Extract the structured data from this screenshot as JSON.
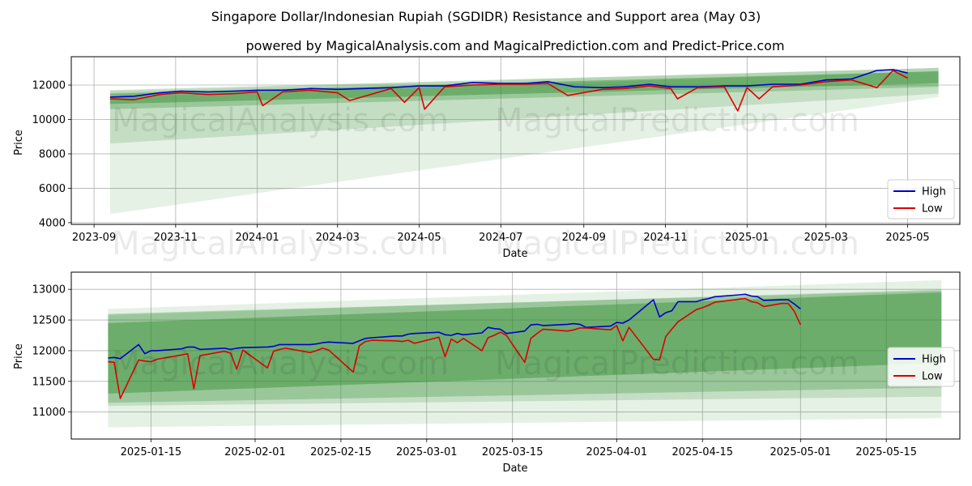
{
  "title": "Singapore Dollar/Indonesian Rupiah (SGDIDR) Resistance and Support area (May 03)",
  "subtitle": "powered by MagicalAnalysis.com and MagicalPrediction.com and Predict-Price.com",
  "watermarks": [
    "MagicalAnalysis.com",
    "MagicalPrediction.com"
  ],
  "colors": {
    "high": "#0000cc",
    "low": "#dd0000",
    "band": "#2e8b2e",
    "grid": "#b0b0b0"
  },
  "chart_data": [
    {
      "type": "line",
      "xlabel": "Date",
      "ylabel": "Price",
      "x_ticks": [
        "2023-09",
        "2023-11",
        "2024-01",
        "2024-03",
        "2024-05",
        "2024-07",
        "2024-09",
        "2024-11",
        "2025-01",
        "2025-03",
        "2025-05"
      ],
      "y_ticks": [
        "4000",
        "6000",
        "8000",
        "10000",
        "12000"
      ],
      "xlim": [
        "2023-08-15",
        "2025-06-09"
      ],
      "ylim": [
        3900,
        13650
      ],
      "grid": true,
      "legend": {
        "position": "lower-right",
        "entries": [
          "High",
          "Low"
        ]
      },
      "bands": [
        {
          "x": [
            "2023-09-13",
            "2025-05-24"
          ],
          "lower": [
            4500,
            11300
          ],
          "upper": [
            11600,
            13000
          ]
        },
        {
          "x": [
            "2023-09-13",
            "2025-05-24"
          ],
          "lower": [
            8600,
            11500
          ],
          "upper": [
            11300,
            12800
          ]
        },
        {
          "x": [
            "2023-09-13",
            "2025-05-24"
          ],
          "lower": [
            10600,
            11900
          ],
          "upper": [
            11700,
            13000
          ]
        },
        {
          "x": [
            "2023-09-13",
            "2025-05-24"
          ],
          "lower": [
            10900,
            12100
          ],
          "upper": [
            11500,
            12800
          ]
        }
      ],
      "series": [
        {
          "name": "High",
          "x": [
            "2023-09-13",
            "2023-10-01",
            "2023-10-20",
            "2023-11-05",
            "2023-11-25",
            "2023-12-15",
            "2024-01-01",
            "2024-01-20",
            "2024-02-10",
            "2024-03-01",
            "2024-03-20",
            "2024-04-10",
            "2024-05-01",
            "2024-05-20",
            "2024-06-10",
            "2024-07-01",
            "2024-07-20",
            "2024-08-05",
            "2024-08-25",
            "2024-09-15",
            "2024-10-01",
            "2024-10-20",
            "2024-11-05",
            "2024-11-25",
            "2024-12-15",
            "2025-01-01",
            "2025-01-20",
            "2025-02-10",
            "2025-03-01",
            "2025-03-20",
            "2025-04-08",
            "2025-04-20",
            "2025-05-01"
          ],
          "values": [
            11300,
            11350,
            11550,
            11650,
            11600,
            11650,
            11700,
            11700,
            11800,
            11750,
            11800,
            11850,
            11950,
            11950,
            12150,
            12100,
            12100,
            12200,
            11900,
            11850,
            11900,
            12050,
            11900,
            11900,
            11950,
            11950,
            12050,
            12050,
            12300,
            12350,
            12850,
            12900,
            12700
          ]
        },
        {
          "name": "Low",
          "x": [
            "2023-09-13",
            "2023-10-01",
            "2023-10-20",
            "2023-11-05",
            "2023-11-25",
            "2023-12-15",
            "2024-01-01",
            "2024-01-05",
            "2024-01-20",
            "2024-02-10",
            "2024-03-01",
            "2024-03-10",
            "2024-04-10",
            "2024-04-20",
            "2024-05-01",
            "2024-05-05",
            "2024-05-20",
            "2024-06-10",
            "2024-07-01",
            "2024-07-20",
            "2024-08-05",
            "2024-08-20",
            "2024-09-15",
            "2024-10-01",
            "2024-10-20",
            "2024-11-05",
            "2024-11-10",
            "2024-11-25",
            "2024-12-15",
            "2024-12-25",
            "2025-01-01",
            "2025-01-10",
            "2025-01-20",
            "2025-02-10",
            "2025-03-01",
            "2025-03-20",
            "2025-04-08",
            "2025-04-20",
            "2025-05-01"
          ],
          "values": [
            11200,
            11150,
            11450,
            11550,
            11450,
            11500,
            11600,
            10800,
            11600,
            11700,
            11550,
            11100,
            11800,
            11000,
            11850,
            10600,
            11900,
            12000,
            12050,
            12050,
            12100,
            11400,
            11750,
            11800,
            11950,
            11800,
            11200,
            11850,
            11900,
            10500,
            11850,
            11200,
            11900,
            12000,
            12200,
            12300,
            11850,
            12850,
            12400
          ]
        }
      ]
    },
    {
      "type": "line",
      "xlabel": "Date",
      "ylabel": "Price",
      "x_ticks": [
        "2025-01-15",
        "2025-02-01",
        "2025-02-15",
        "2025-03-01",
        "2025-03-15",
        "2025-04-01",
        "2025-04-15",
        "2025-05-01",
        "2025-05-15"
      ],
      "y_ticks": [
        "11000",
        "11500",
        "12000",
        "12500",
        "13000"
      ],
      "xlim": [
        "2025-01-02",
        "2025-05-27"
      ],
      "ylim": [
        10560,
        13280
      ],
      "grid": true,
      "legend": {
        "position": "center-right",
        "entries": [
          "High",
          "Low"
        ]
      },
      "bands": [
        {
          "x": [
            "2025-01-08",
            "2025-05-24"
          ],
          "lower": [
            10750,
            10900
          ],
          "upper": [
            12680,
            13150
          ]
        },
        {
          "x": [
            "2025-01-08",
            "2025-05-24"
          ],
          "lower": [
            11100,
            11250
          ],
          "upper": [
            12580,
            13000
          ]
        },
        {
          "x": [
            "2025-01-08",
            "2025-05-24"
          ],
          "lower": [
            11150,
            11400
          ],
          "upper": [
            12600,
            12980
          ]
        },
        {
          "x": [
            "2025-01-08",
            "2025-05-24"
          ],
          "lower": [
            11300,
            11800
          ],
          "upper": [
            12450,
            12950
          ]
        }
      ],
      "series": [
        {
          "name": "High",
          "x": [
            "2025-01-08",
            "2025-01-09",
            "2025-01-10",
            "2025-01-13",
            "2025-01-14",
            "2025-01-15",
            "2025-01-16",
            "2025-01-20",
            "2025-01-21",
            "2025-01-22",
            "2025-01-23",
            "2025-01-27",
            "2025-01-28",
            "2025-01-29",
            "2025-01-30",
            "2025-02-03",
            "2025-02-04",
            "2025-02-05",
            "2025-02-06",
            "2025-02-10",
            "2025-02-11",
            "2025-02-12",
            "2025-02-13",
            "2025-02-17",
            "2025-02-18",
            "2025-02-19",
            "2025-02-20",
            "2025-02-24",
            "2025-02-25",
            "2025-02-26",
            "2025-02-27",
            "2025-03-03",
            "2025-03-04",
            "2025-03-05",
            "2025-03-06",
            "2025-03-07",
            "2025-03-10",
            "2025-03-11",
            "2025-03-12",
            "2025-03-13",
            "2025-03-14",
            "2025-03-17",
            "2025-03-18",
            "2025-03-19",
            "2025-03-20",
            "2025-03-24",
            "2025-03-25",
            "2025-03-26",
            "2025-03-27",
            "2025-03-31",
            "2025-04-01",
            "2025-04-02",
            "2025-04-03",
            "2025-04-07",
            "2025-04-08",
            "2025-04-09",
            "2025-04-10",
            "2025-04-11",
            "2025-04-14",
            "2025-04-15",
            "2025-04-16",
            "2025-04-17",
            "2025-04-21",
            "2025-04-22",
            "2025-04-23",
            "2025-04-24",
            "2025-04-25",
            "2025-04-28",
            "2025-04-29",
            "2025-04-30",
            "2025-05-01"
          ],
          "values": [
            11880,
            11890,
            11870,
            12100,
            11950,
            12000,
            12000,
            12030,
            12060,
            12060,
            12020,
            12040,
            12020,
            12040,
            12050,
            12060,
            12070,
            12100,
            12100,
            12100,
            12110,
            12130,
            12140,
            12120,
            12160,
            12200,
            12210,
            12240,
            12240,
            12270,
            12280,
            12300,
            12260,
            12250,
            12280,
            12260,
            12290,
            12380,
            12360,
            12350,
            12280,
            12320,
            12420,
            12430,
            12410,
            12430,
            12440,
            12430,
            12380,
            12400,
            12460,
            12450,
            12500,
            12830,
            12550,
            12620,
            12650,
            12800,
            12800,
            12830,
            12850,
            12880,
            12910,
            12920,
            12890,
            12880,
            12820,
            12830,
            12830,
            12760,
            12680
          ]
        },
        {
          "name": "Low",
          "x": [
            "2025-01-08",
            "2025-01-09",
            "2025-01-10",
            "2025-01-13",
            "2025-01-14",
            "2025-01-15",
            "2025-01-16",
            "2025-01-20",
            "2025-01-21",
            "2025-01-22",
            "2025-01-23",
            "2025-01-27",
            "2025-01-28",
            "2025-01-29",
            "2025-01-30",
            "2025-02-03",
            "2025-02-04",
            "2025-02-05",
            "2025-02-06",
            "2025-02-10",
            "2025-02-11",
            "2025-02-12",
            "2025-02-13",
            "2025-02-17",
            "2025-02-18",
            "2025-02-19",
            "2025-02-20",
            "2025-02-24",
            "2025-02-25",
            "2025-02-26",
            "2025-02-27",
            "2025-03-03",
            "2025-03-04",
            "2025-03-05",
            "2025-03-06",
            "2025-03-07",
            "2025-03-10",
            "2025-03-11",
            "2025-03-12",
            "2025-03-13",
            "2025-03-14",
            "2025-03-17",
            "2025-03-18",
            "2025-03-19",
            "2025-03-20",
            "2025-03-24",
            "2025-03-25",
            "2025-03-26",
            "2025-03-27",
            "2025-03-31",
            "2025-04-01",
            "2025-04-02",
            "2025-04-03",
            "2025-04-07",
            "2025-04-08",
            "2025-04-09",
            "2025-04-10",
            "2025-04-11",
            "2025-04-14",
            "2025-04-15",
            "2025-04-16",
            "2025-04-17",
            "2025-04-21",
            "2025-04-22",
            "2025-04-23",
            "2025-04-24",
            "2025-04-25",
            "2025-04-28",
            "2025-04-29",
            "2025-04-30",
            "2025-05-01"
          ],
          "values": [
            11820,
            11810,
            11220,
            11850,
            11830,
            11820,
            11860,
            11930,
            11950,
            11380,
            11920,
            11990,
            11960,
            11700,
            12010,
            11720,
            11990,
            12020,
            12040,
            11970,
            12000,
            12040,
            12010,
            11650,
            12080,
            12150,
            12170,
            12160,
            12150,
            12170,
            12120,
            12220,
            11900,
            12190,
            12130,
            12200,
            12000,
            12210,
            12250,
            12300,
            12250,
            11810,
            12200,
            12280,
            12350,
            12320,
            12340,
            12370,
            12370,
            12340,
            12410,
            12160,
            12380,
            11860,
            11850,
            12230,
            12350,
            12470,
            12670,
            12700,
            12740,
            12790,
            12840,
            12850,
            12800,
            12780,
            12720,
            12770,
            12770,
            12640,
            12420
          ]
        }
      ]
    }
  ]
}
